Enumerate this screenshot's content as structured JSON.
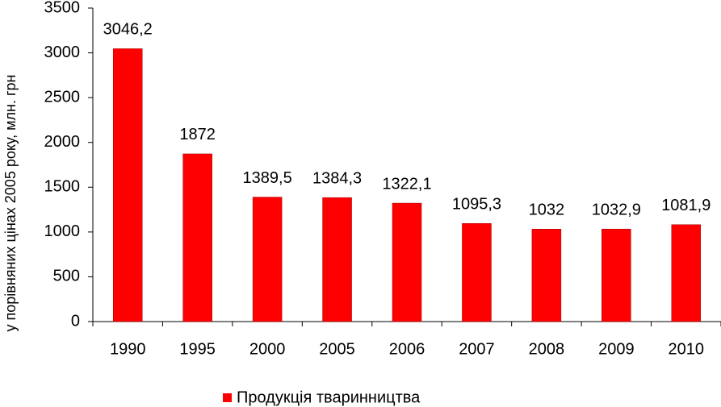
{
  "chart_data": {
    "type": "bar",
    "y_label": "у порівняних цінах 2005 року, млн. грн",
    "categories": [
      "1990",
      "1995",
      "2000",
      "2005",
      "2006",
      "2007",
      "2008",
      "2009",
      "2010"
    ],
    "series": [
      {
        "name": "Продукція тваринництва",
        "color": "#ff0000",
        "values": [
          3046.2,
          1872,
          1389.5,
          1384.3,
          1322.1,
          1095.3,
          1032,
          1032.9,
          1081.9
        ],
        "value_labels": [
          "3046,2",
          "1872",
          "1389,5",
          "1384,3",
          "1322,1",
          "1095,3",
          "1032",
          "1032,9",
          "1081,9"
        ]
      }
    ],
    "ylim": [
      0,
      3500
    ],
    "yticks": [
      0,
      500,
      1000,
      1500,
      2000,
      2500,
      3000,
      3500
    ],
    "grid": false,
    "legend": "bottom"
  }
}
